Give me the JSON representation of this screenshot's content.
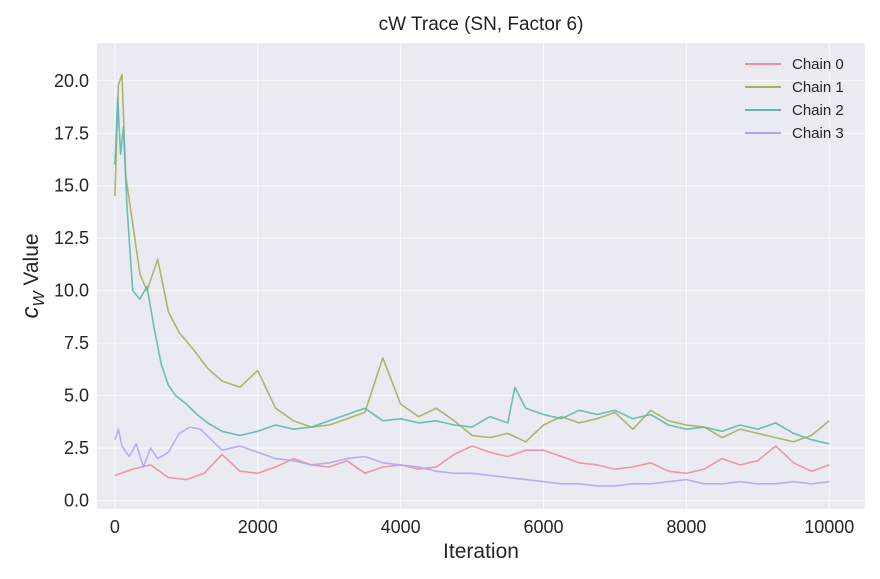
{
  "chart_data": {
    "type": "line",
    "title": "cW Trace (SN, Factor 6)",
    "xlabel": "Iteration",
    "ylabel_main": "c",
    "ylabel_sub": "W",
    "ylabel_rest": " Value",
    "xlim": [
      -250,
      10500
    ],
    "ylim": [
      -0.4,
      21.8
    ],
    "xticks": [
      0,
      2000,
      4000,
      6000,
      8000,
      10000
    ],
    "xtick_labels": [
      "0",
      "2000",
      "4000",
      "6000",
      "8000",
      "10000"
    ],
    "yticks": [
      0,
      2.5,
      5,
      7.5,
      10,
      12.5,
      15,
      17.5,
      20
    ],
    "ytick_labels": [
      "0.0",
      "2.5",
      "5.0",
      "7.5",
      "10.0",
      "12.5",
      "15.0",
      "17.5",
      "20.0"
    ],
    "grid": true,
    "legend_position": "top-right",
    "background": "#eaeaf2",
    "series": [
      {
        "name": "Chain 0",
        "color": "#f08c9c",
        "x": [
          0,
          250,
          500,
          750,
          1000,
          1250,
          1500,
          1750,
          2000,
          2250,
          2500,
          2750,
          3000,
          3250,
          3500,
          3750,
          4000,
          4250,
          4500,
          4750,
          5000,
          5250,
          5500,
          5750,
          6000,
          6250,
          6500,
          6750,
          7000,
          7250,
          7500,
          7750,
          8000,
          8250,
          8500,
          8750,
          9000,
          9250,
          9500,
          9750,
          10000
        ],
        "y": [
          1.2,
          1.5,
          1.7,
          1.1,
          1.0,
          1.3,
          2.2,
          1.4,
          1.3,
          1.6,
          2.0,
          1.7,
          1.6,
          1.9,
          1.3,
          1.6,
          1.7,
          1.5,
          1.6,
          2.2,
          2.6,
          2.3,
          2.1,
          2.4,
          2.4,
          2.1,
          1.8,
          1.7,
          1.5,
          1.6,
          1.8,
          1.4,
          1.3,
          1.5,
          2.0,
          1.7,
          1.9,
          2.6,
          1.8,
          1.4,
          1.7
        ]
      },
      {
        "name": "Chain 1",
        "color": "#a5b05c",
        "x": [
          0,
          50,
          100,
          150,
          250,
          350,
          450,
          600,
          750,
          900,
          1100,
          1300,
          1500,
          1750,
          2000,
          2250,
          2500,
          2750,
          3000,
          3250,
          3500,
          3750,
          4000,
          4250,
          4500,
          4750,
          5000,
          5250,
          5500,
          5750,
          6000,
          6250,
          6500,
          6750,
          7000,
          7250,
          7500,
          7750,
          8000,
          8250,
          8500,
          8750,
          9000,
          9250,
          9500,
          9750,
          10000
        ],
        "y": [
          14.5,
          19.8,
          20.3,
          15.5,
          13.2,
          10.8,
          10.0,
          11.5,
          9.0,
          8.0,
          7.2,
          6.3,
          5.7,
          5.4,
          6.2,
          4.4,
          3.8,
          3.5,
          3.6,
          3.9,
          4.2,
          6.8,
          4.6,
          4.0,
          4.4,
          3.8,
          3.1,
          3.0,
          3.2,
          2.8,
          3.6,
          4.0,
          3.7,
          3.9,
          4.2,
          3.4,
          4.3,
          3.8,
          3.6,
          3.5,
          3.0,
          3.4,
          3.2,
          3.0,
          2.8,
          3.1,
          3.8
        ]
      },
      {
        "name": "Chain 2",
        "color": "#5fb8ad",
        "x": [
          0,
          40,
          80,
          120,
          170,
          250,
          350,
          450,
          550,
          650,
          750,
          850,
          1000,
          1150,
          1300,
          1500,
          1750,
          2000,
          2250,
          2500,
          2750,
          3000,
          3250,
          3500,
          3750,
          4000,
          4250,
          4500,
          4750,
          5000,
          5250,
          5500,
          5600,
          5750,
          6000,
          6250,
          6500,
          6750,
          7000,
          7250,
          7500,
          7750,
          8000,
          8250,
          8500,
          8750,
          9000,
          9250,
          9500,
          9750,
          10000
        ],
        "y": [
          16.0,
          19.2,
          16.5,
          17.8,
          14.0,
          10.0,
          9.6,
          10.2,
          8.2,
          6.5,
          5.5,
          5.0,
          4.6,
          4.1,
          3.7,
          3.3,
          3.1,
          3.3,
          3.6,
          3.4,
          3.5,
          3.8,
          4.1,
          4.4,
          3.8,
          3.9,
          3.7,
          3.8,
          3.6,
          3.5,
          4.0,
          3.7,
          5.4,
          4.4,
          4.1,
          3.9,
          4.3,
          4.1,
          4.3,
          3.9,
          4.1,
          3.6,
          3.4,
          3.5,
          3.3,
          3.6,
          3.4,
          3.7,
          3.2,
          2.9,
          2.7
        ]
      },
      {
        "name": "Chain 3",
        "color": "#b3a6ef",
        "x": [
          0,
          50,
          100,
          200,
          300,
          400,
          500,
          600,
          750,
          900,
          1050,
          1200,
          1350,
          1500,
          1750,
          2000,
          2250,
          2500,
          2750,
          3000,
          3250,
          3500,
          3750,
          4000,
          4250,
          4500,
          4750,
          5000,
          5250,
          5500,
          5750,
          6000,
          6250,
          6500,
          6750,
          7000,
          7250,
          7500,
          7750,
          8000,
          8250,
          8500,
          8750,
          9000,
          9250,
          9500,
          9750,
          10000
        ],
        "y": [
          2.9,
          3.4,
          2.6,
          2.1,
          2.7,
          1.6,
          2.5,
          2.0,
          2.3,
          3.2,
          3.5,
          3.4,
          2.9,
          2.4,
          2.6,
          2.3,
          2.0,
          1.9,
          1.7,
          1.8,
          2.0,
          2.1,
          1.8,
          1.7,
          1.6,
          1.4,
          1.3,
          1.3,
          1.2,
          1.1,
          1.0,
          0.9,
          0.8,
          0.8,
          0.7,
          0.7,
          0.8,
          0.8,
          0.9,
          1.0,
          0.8,
          0.8,
          0.9,
          0.8,
          0.8,
          0.9,
          0.8,
          0.9
        ]
      }
    ]
  }
}
